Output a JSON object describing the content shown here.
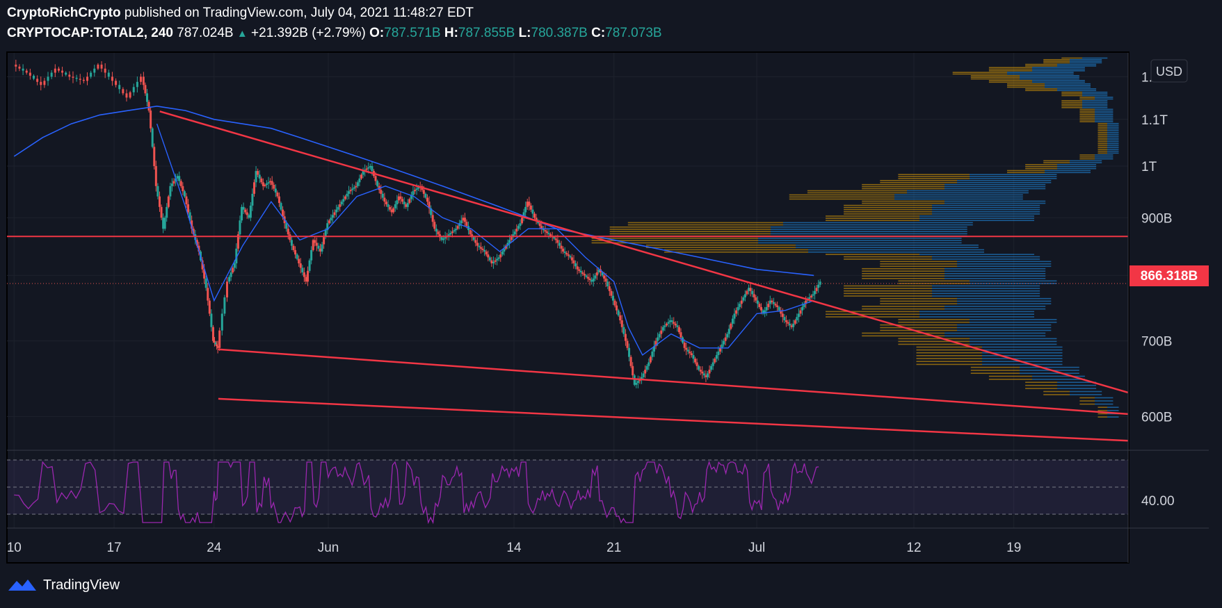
{
  "header": {
    "author": "CryptoRichCrypto",
    "published": "published on TradingView.com, July 04, 2021 11:48:27 EDT",
    "symbol": "CRYPTOCAP:TOTAL2, 240",
    "last": "787.024B",
    "change_arrow": "▲",
    "change": "+21.392B (+2.79%)",
    "o_label": "O:",
    "o_value": "787.571B",
    "h_label": "H:",
    "h_value": "787.855B",
    "l_label": "L:",
    "l_value": "780.387B",
    "c_label": "C:",
    "c_value": "787.073B"
  },
  "currency": "USD",
  "price_tag": "866.318B",
  "rsi_label": "40.00",
  "footer": {
    "brand": "TradingView"
  },
  "colors": {
    "background": "#131722",
    "up": "#26a69a",
    "down": "#ef5350",
    "trendline": "#f23645",
    "ma": "#2962ff",
    "rsi": "#9c27b0",
    "volume_profile_up": "#2196f3",
    "volume_profile_down": "#ffb300"
  },
  "chart_data": {
    "type": "line",
    "title": "CRYPTOCAP:TOTAL2, 240",
    "xlabel": "",
    "ylabel": "",
    "y_scale": "log",
    "ylim": [
      560,
      1260
    ],
    "y_ticks": [
      {
        "label": "1.2T",
        "value": 1200
      },
      {
        "label": "1.1T",
        "value": 1100
      },
      {
        "label": "1T",
        "value": 1000
      },
      {
        "label": "900B",
        "value": 900
      },
      {
        "label": "800B",
        "value": 800
      },
      {
        "label": "700B",
        "value": 700
      },
      {
        "label": "600B",
        "value": 600
      }
    ],
    "x_ticks": [
      {
        "label": "10",
        "day": 0
      },
      {
        "label": "17",
        "day": 7
      },
      {
        "label": "24",
        "day": 14
      },
      {
        "label": "Jun",
        "day": 22
      },
      {
        "label": "14",
        "day": 35
      },
      {
        "label": "21",
        "day": 42
      },
      {
        "label": "Jul",
        "day": 52
      },
      {
        "label": "12",
        "day": 63
      },
      {
        "label": "19",
        "day": 70
      }
    ],
    "xlim_day": [
      -0.5,
      78
    ],
    "series": [
      {
        "name": "",
        "values": [
          [
            0,
            1230
          ],
          [
            1,
            1210
          ],
          [
            2,
            1180
          ],
          [
            3,
            1220
          ],
          [
            4,
            1200
          ],
          [
            5,
            1190
          ],
          [
            6,
            1230
          ],
          [
            7,
            1190
          ],
          [
            8,
            1150
          ],
          [
            9,
            1200
          ],
          [
            9.5,
            1120
          ],
          [
            10,
            960
          ],
          [
            10.5,
            880
          ],
          [
            11,
            960
          ],
          [
            11.5,
            980
          ],
          [
            12,
            940
          ],
          [
            12.5,
            880
          ],
          [
            13,
            840
          ],
          [
            13.5,
            780
          ],
          [
            14,
            700
          ],
          [
            14.3,
            690
          ],
          [
            15,
            790
          ],
          [
            15.5,
            820
          ],
          [
            16,
            920
          ],
          [
            16.5,
            900
          ],
          [
            17,
            990
          ],
          [
            17.5,
            960
          ],
          [
            18,
            970
          ],
          [
            18.5,
            940
          ],
          [
            19,
            890
          ],
          [
            19.5,
            850
          ],
          [
            20,
            820
          ],
          [
            20.5,
            790
          ],
          [
            21,
            860
          ],
          [
            21.5,
            840
          ],
          [
            22,
            890
          ],
          [
            22.5,
            910
          ],
          [
            23,
            930
          ],
          [
            23.5,
            950
          ],
          [
            24,
            960
          ],
          [
            24.5,
            990
          ],
          [
            25,
            1000
          ],
          [
            25.5,
            960
          ],
          [
            26,
            930
          ],
          [
            26.5,
            910
          ],
          [
            27,
            940
          ],
          [
            27.5,
            920
          ],
          [
            28,
            950
          ],
          [
            28.5,
            960
          ],
          [
            29,
            930
          ],
          [
            29.5,
            880
          ],
          [
            30,
            860
          ],
          [
            30.5,
            870
          ],
          [
            31,
            880
          ],
          [
            31.5,
            900
          ],
          [
            32,
            870
          ],
          [
            32.5,
            850
          ],
          [
            33,
            840
          ],
          [
            33.5,
            820
          ],
          [
            34,
            830
          ],
          [
            34.5,
            850
          ],
          [
            35,
            870
          ],
          [
            35.5,
            890
          ],
          [
            36,
            930
          ],
          [
            36.5,
            900
          ],
          [
            37,
            880
          ],
          [
            37.5,
            870
          ],
          [
            38,
            860
          ],
          [
            38.5,
            840
          ],
          [
            39,
            830
          ],
          [
            39.5,
            810
          ],
          [
            40,
            800
          ],
          [
            40.5,
            790
          ],
          [
            41,
            810
          ],
          [
            41.5,
            790
          ],
          [
            42,
            760
          ],
          [
            42.5,
            730
          ],
          [
            43,
            690
          ],
          [
            43.5,
            640
          ],
          [
            44,
            650
          ],
          [
            44.5,
            670
          ],
          [
            45,
            700
          ],
          [
            45.5,
            720
          ],
          [
            46,
            730
          ],
          [
            46.5,
            720
          ],
          [
            47,
            690
          ],
          [
            47.5,
            680
          ],
          [
            48,
            660
          ],
          [
            48.5,
            650
          ],
          [
            49,
            670
          ],
          [
            49.5,
            690
          ],
          [
            50,
            710
          ],
          [
            50.5,
            740
          ],
          [
            51,
            760
          ],
          [
            51.5,
            780
          ],
          [
            52,
            760
          ],
          [
            52.5,
            740
          ],
          [
            53,
            760
          ],
          [
            53.5,
            750
          ],
          [
            54,
            730
          ],
          [
            54.5,
            720
          ],
          [
            55,
            740
          ],
          [
            55.5,
            760
          ],
          [
            56,
            770
          ],
          [
            56.5,
            790
          ]
        ]
      },
      {
        "name": "",
        "values": [
          [
            0,
            1020
          ],
          [
            2,
            1060
          ],
          [
            4,
            1090
          ],
          [
            6,
            1110
          ],
          [
            8,
            1120
          ],
          [
            10,
            1130
          ],
          [
            12,
            1120
          ],
          [
            14,
            1100
          ],
          [
            16,
            1090
          ],
          [
            18,
            1080
          ],
          [
            20,
            1060
          ],
          [
            22,
            1040
          ],
          [
            24,
            1020
          ],
          [
            26,
            1000
          ],
          [
            28,
            980
          ],
          [
            30,
            960
          ],
          [
            32,
            940
          ],
          [
            34,
            920
          ],
          [
            36,
            900
          ],
          [
            38,
            880
          ],
          [
            40,
            870
          ],
          [
            42,
            860
          ],
          [
            44,
            850
          ],
          [
            46,
            840
          ],
          [
            48,
            830
          ],
          [
            50,
            820
          ],
          [
            52,
            810
          ],
          [
            54,
            805
          ],
          [
            56,
            800
          ]
        ]
      },
      {
        "name": "",
        "values": [
          [
            10,
            1090
          ],
          [
            12,
            920
          ],
          [
            14,
            760
          ],
          [
            16,
            850
          ],
          [
            18,
            930
          ],
          [
            20,
            860
          ],
          [
            22,
            880
          ],
          [
            24,
            940
          ],
          [
            26,
            960
          ],
          [
            28,
            940
          ],
          [
            30,
            900
          ],
          [
            32,
            880
          ],
          [
            34,
            840
          ],
          [
            36,
            880
          ],
          [
            38,
            880
          ],
          [
            40,
            830
          ],
          [
            42,
            790
          ],
          [
            43,
            720
          ],
          [
            44,
            680
          ],
          [
            46,
            710
          ],
          [
            48,
            690
          ],
          [
            50,
            690
          ],
          [
            52,
            740
          ],
          [
            54,
            745
          ],
          [
            56,
            760
          ]
        ]
      }
    ],
    "trendlines": [
      {
        "from": [
          10.2,
          1118
        ],
        "to": [
          78,
          630
        ]
      },
      {
        "from": [
          14.3,
          688
        ],
        "to": [
          78,
          603
        ]
      },
      {
        "from": [
          14.3,
          622
        ],
        "to": [
          78,
          571
        ]
      },
      {
        "from": [
          -0.5,
          866.318
        ],
        "to": [
          78,
          866.318
        ]
      }
    ],
    "rsi": {
      "range_label": "40.00",
      "levels": [
        70,
        50,
        30
      ]
    }
  }
}
